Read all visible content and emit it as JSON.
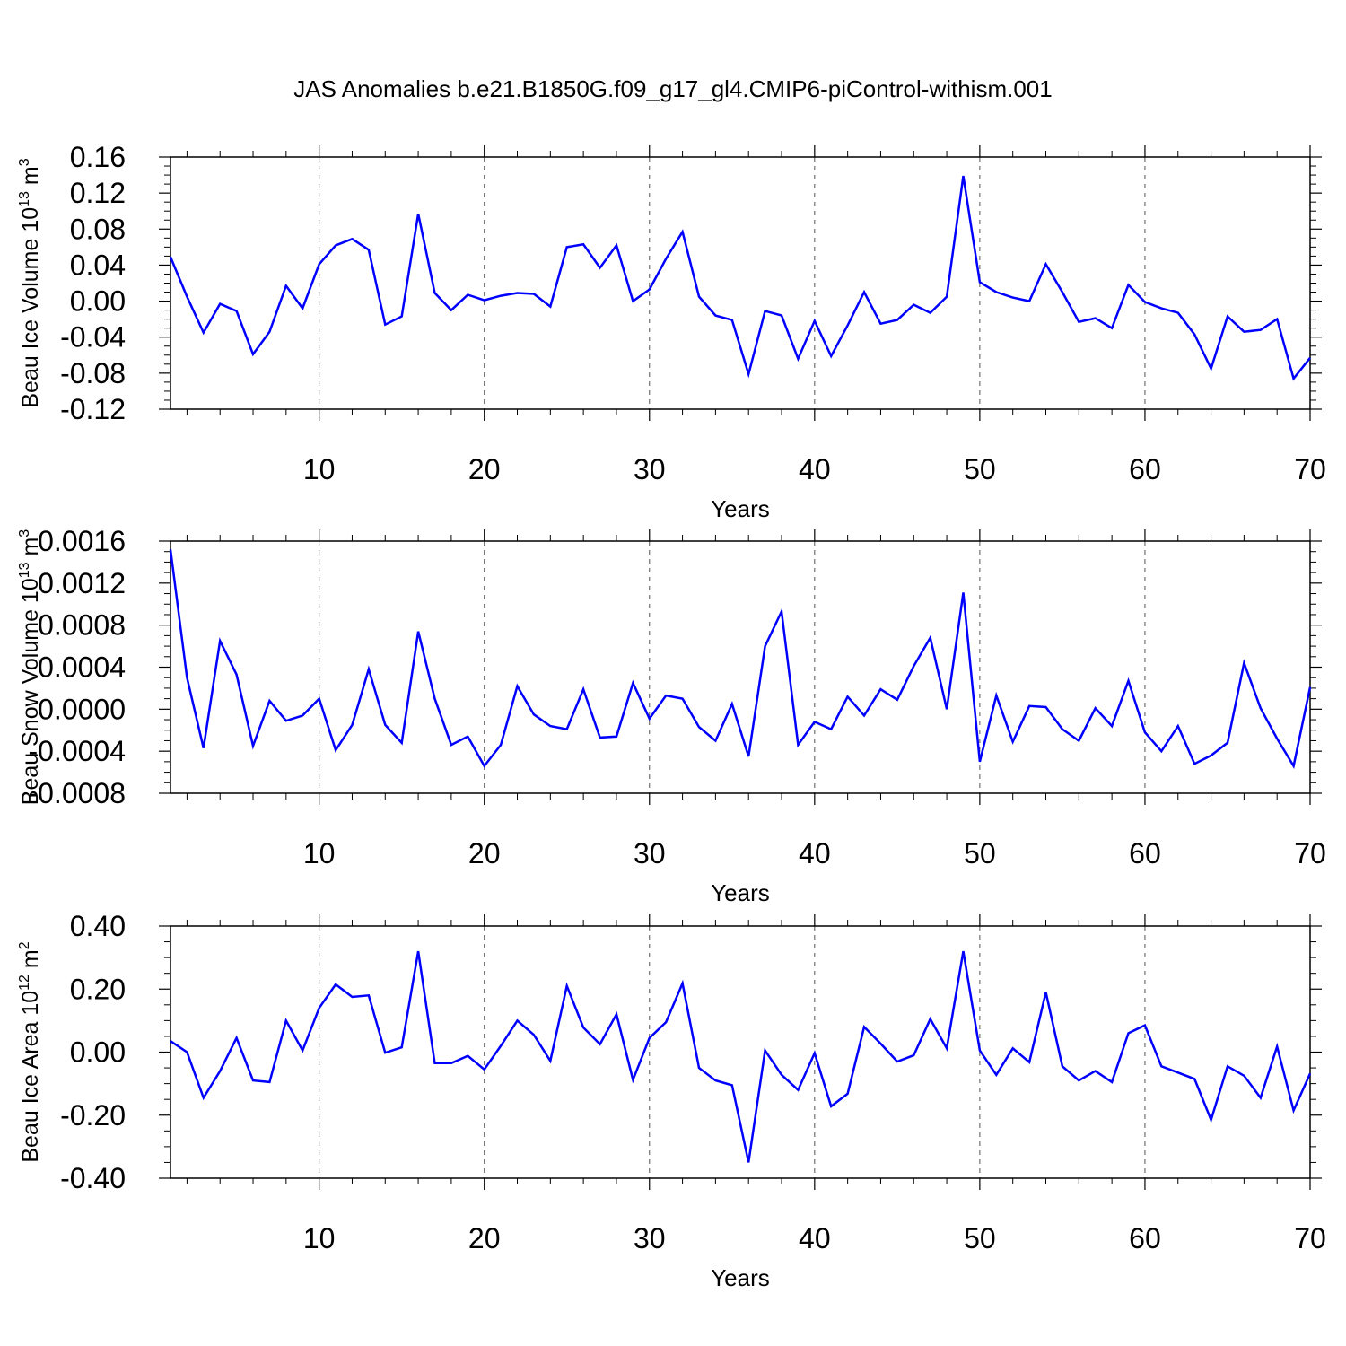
{
  "title": "JAS Anomalies b.e21.B1850G.f09_g17_gl4.CMIP6-piControl-withism.001",
  "chart_data": [
    {
      "type": "line",
      "ylabel": "Beau Ice Volume 10",
      "ylabel_exp": "13",
      "ylabel_unit": " m",
      "ylabel_unit_exp": "3",
      "xlabel": "Years",
      "xlim": [
        1,
        70
      ],
      "ylim": [
        -0.12,
        0.16
      ],
      "yticks": [
        -0.12,
        -0.08,
        -0.04,
        0.0,
        0.04,
        0.08,
        0.12,
        0.16
      ],
      "ytick_labels": [
        "-0.12",
        "-0.08",
        "-0.04",
        "0.00",
        "0.04",
        "0.08",
        "0.12",
        "0.16"
      ],
      "xticks": [
        10,
        20,
        30,
        40,
        50,
        60,
        70
      ],
      "xtick_labels": [
        "10",
        "20",
        "30",
        "40",
        "50",
        "60",
        "70"
      ],
      "line_color": "#0000ff",
      "x": [
        1,
        2,
        3,
        4,
        5,
        6,
        7,
        8,
        9,
        10,
        11,
        12,
        13,
        14,
        15,
        16,
        17,
        18,
        19,
        20,
        21,
        22,
        23,
        24,
        25,
        26,
        27,
        28,
        29,
        30,
        31,
        32,
        33,
        34,
        35,
        36,
        37,
        38,
        39,
        40,
        41,
        42,
        43,
        44,
        45,
        46,
        47,
        48,
        49,
        50,
        51,
        52,
        53,
        54,
        55,
        56,
        57,
        58,
        59,
        60,
        61,
        62,
        63,
        64,
        65,
        66,
        67,
        68,
        69,
        70
      ],
      "values": [
        0.049,
        0.005,
        -0.035,
        -0.003,
        -0.011,
        -0.059,
        -0.034,
        0.017,
        -0.008,
        0.041,
        0.062,
        0.069,
        0.057,
        -0.026,
        -0.017,
        0.097,
        0.009,
        -0.01,
        0.007,
        0.001,
        0.006,
        0.009,
        0.008,
        -0.006,
        0.06,
        0.063,
        0.037,
        0.062,
        0.0,
        0.013,
        0.047,
        0.077,
        0.005,
        -0.016,
        -0.021,
        -0.081,
        -0.011,
        -0.016,
        -0.064,
        -0.022,
        -0.061,
        -0.027,
        0.01,
        -0.025,
        -0.021,
        -0.004,
        -0.013,
        0.005,
        0.139,
        0.021,
        0.01,
        0.004,
        0.0,
        0.041,
        0.01,
        -0.023,
        -0.019,
        -0.03,
        0.018,
        -0.001,
        -0.008,
        -0.013,
        -0.037,
        -0.075,
        -0.017,
        -0.034,
        -0.032,
        -0.02,
        -0.086,
        -0.063
      ]
    },
    {
      "type": "line",
      "ylabel": "Beau Snow Volume 10",
      "ylabel_exp": "13",
      "ylabel_unit": " m",
      "ylabel_unit_exp": "3",
      "xlabel": "Years",
      "xlim": [
        1,
        70
      ],
      "ylim": [
        -0.0008,
        0.0016
      ],
      "yticks": [
        -0.0008,
        -0.0004,
        0.0,
        0.0004,
        0.0008,
        0.0012,
        0.0016
      ],
      "ytick_labels": [
        "-0.0008",
        "-0.0004",
        "0.0000",
        "0.0004",
        "0.0008",
        "0.0012",
        "0.0016"
      ],
      "xticks": [
        10,
        20,
        30,
        40,
        50,
        60,
        70
      ],
      "xtick_labels": [
        "10",
        "20",
        "30",
        "40",
        "50",
        "60",
        "70"
      ],
      "line_color": "#0000ff",
      "x": [
        1,
        2,
        3,
        4,
        5,
        6,
        7,
        8,
        9,
        10,
        11,
        12,
        13,
        14,
        15,
        16,
        17,
        18,
        19,
        20,
        21,
        22,
        23,
        24,
        25,
        26,
        27,
        28,
        29,
        30,
        31,
        32,
        33,
        34,
        35,
        36,
        37,
        38,
        39,
        40,
        41,
        42,
        43,
        44,
        45,
        46,
        47,
        48,
        49,
        50,
        51,
        52,
        53,
        54,
        55,
        56,
        57,
        58,
        59,
        60,
        61,
        62,
        63,
        64,
        65,
        66,
        67,
        68,
        69,
        70
      ],
      "values": [
        0.00152,
        0.0003,
        -0.00037,
        0.00065,
        0.00033,
        -0.00035,
        8e-05,
        -0.00011,
        -6e-05,
        0.0001,
        -0.00039,
        -0.00015,
        0.00038,
        -0.00015,
        -0.00032,
        0.00074,
        0.0001,
        -0.00034,
        -0.00026,
        -0.00054,
        -0.00034,
        0.00022,
        -5e-05,
        -0.00016,
        -0.00019,
        0.00019,
        -0.00027,
        -0.00026,
        0.00025,
        -9e-05,
        0.00013,
        0.0001,
        -0.00017,
        -0.0003,
        5e-05,
        -0.00045,
        0.0006,
        0.00093,
        -0.00034,
        -0.00012,
        -0.00019,
        0.00012,
        -6e-05,
        0.00019,
        9e-05,
        0.00041,
        0.00068,
        0.0,
        0.00111,
        -0.0005,
        0.00013,
        -0.00031,
        3e-05,
        2e-05,
        -0.00019,
        -0.0003,
        1e-05,
        -0.00016,
        0.00027,
        -0.00022,
        -0.0004,
        -0.00016,
        -0.00052,
        -0.00044,
        -0.00032,
        0.00044,
        1e-05,
        -0.00028,
        -0.00054,
        0.00021
      ]
    },
    {
      "type": "line",
      "ylabel": "Beau Ice Area 10",
      "ylabel_exp": "12",
      "ylabel_unit": " m",
      "ylabel_unit_exp": "2",
      "xlabel": "Years",
      "xlim": [
        1,
        70
      ],
      "ylim": [
        -0.4,
        0.4
      ],
      "yticks": [
        -0.4,
        -0.2,
        0.0,
        0.2,
        0.4
      ],
      "ytick_labels": [
        "-0.40",
        "-0.20",
        "0.00",
        "0.20",
        "0.40"
      ],
      "xticks": [
        10,
        20,
        30,
        40,
        50,
        60,
        70
      ],
      "xtick_labels": [
        "10",
        "20",
        "30",
        "40",
        "50",
        "60",
        "70"
      ],
      "line_color": "#0000ff",
      "x": [
        1,
        2,
        3,
        4,
        5,
        6,
        7,
        8,
        9,
        10,
        11,
        12,
        13,
        14,
        15,
        16,
        17,
        18,
        19,
        20,
        21,
        22,
        23,
        24,
        25,
        26,
        27,
        28,
        29,
        30,
        31,
        32,
        33,
        34,
        35,
        36,
        37,
        38,
        39,
        40,
        41,
        42,
        43,
        44,
        45,
        46,
        47,
        48,
        49,
        50,
        51,
        52,
        53,
        54,
        55,
        56,
        57,
        58,
        59,
        60,
        61,
        62,
        63,
        64,
        65,
        66,
        67,
        68,
        69,
        70
      ],
      "values": [
        0.035,
        0.0,
        -0.145,
        -0.06,
        0.045,
        -0.09,
        -0.095,
        0.1,
        0.005,
        0.14,
        0.215,
        0.175,
        0.18,
        -0.002,
        0.015,
        0.32,
        -0.035,
        -0.035,
        -0.012,
        -0.055,
        0.02,
        0.1,
        0.055,
        -0.028,
        0.21,
        0.078,
        0.025,
        0.12,
        -0.088,
        0.045,
        0.095,
        0.218,
        -0.05,
        -0.09,
        -0.105,
        -0.35,
        0.005,
        -0.072,
        -0.12,
        -0.003,
        -0.172,
        -0.132,
        0.08,
        0.027,
        -0.03,
        -0.01,
        0.105,
        0.012,
        0.32,
        0.005,
        -0.072,
        0.012,
        -0.032,
        0.19,
        -0.045,
        -0.09,
        -0.06,
        -0.095,
        0.06,
        0.085,
        -0.045,
        -0.065,
        -0.085,
        -0.215,
        -0.045,
        -0.075,
        -0.145,
        0.018,
        -0.185,
        -0.068
      ]
    }
  ]
}
